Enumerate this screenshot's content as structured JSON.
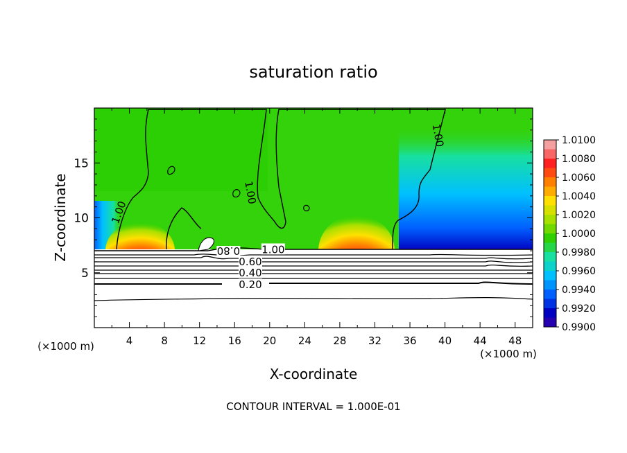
{
  "chart_data": {
    "type": "heatmap",
    "title": "saturation ratio",
    "xlabel": "X-coordinate",
    "ylabel": "Z-coordinate",
    "x_unit_left": "(×1000 m)",
    "x_unit_right": "(×1000 m)",
    "footer": "CONTOUR INTERVAL = 1.000E-01",
    "xlim": [
      0,
      50
    ],
    "ylim": [
      0,
      20
    ],
    "x_ticks": [
      4,
      8,
      12,
      16,
      20,
      24,
      28,
      32,
      36,
      40,
      44,
      48
    ],
    "x_tick_labels": [
      "4",
      "8",
      "12",
      "16",
      "20",
      "24",
      "28",
      "32",
      "36",
      "40",
      "44",
      "48"
    ],
    "y_ticks": [
      5,
      10,
      15
    ],
    "y_tick_labels": [
      "5",
      "10",
      "15"
    ],
    "colorbar": {
      "min": 0.99,
      "max": 1.01,
      "ticks": [
        1.01,
        1.008,
        1.006,
        1.004,
        1.002,
        1.0,
        0.998,
        0.996,
        0.994,
        0.992,
        0.99
      ],
      "tick_labels": [
        "1.0100",
        "1.0080",
        "1.0060",
        "1.0040",
        "1.0020",
        "1.0000",
        "0.9980",
        "0.9960",
        "0.9940",
        "0.9920",
        "0.9900"
      ],
      "colors": [
        "#f4a0a0",
        "#ff2020",
        "#ff8000",
        "#ffe000",
        "#a8e000",
        "#30d000",
        "#18e0a0",
        "#00c0ff",
        "#0060ff",
        "#0000c0",
        "#5000a0"
      ]
    },
    "contour_labels": [
      {
        "text": "1.00",
        "x": 2.8,
        "z": 10.5,
        "rotate": -70
      },
      {
        "text": "1.00",
        "x": 17.8,
        "z": 12.3,
        "rotate": 80
      },
      {
        "text": "1.00",
        "x": 39.2,
        "z": 17.5,
        "rotate": 80
      },
      {
        "text": "1.00",
        "x": 20.4,
        "z": 7.1,
        "rotate": 0
      },
      {
        "text": "0.80",
        "x": 15.3,
        "z": 7.0,
        "rotate": 180
      },
      {
        "text": "0.60",
        "x": 17.8,
        "z": 6.0,
        "rotate": 0
      },
      {
        "text": "0.40",
        "x": 17.8,
        "z": 5.0,
        "rotate": 0
      },
      {
        "text": "0.20",
        "x": 17.8,
        "z": 3.9,
        "rotate": 0
      }
    ],
    "contour_levels_below_cloud": [
      0.2,
      0.4,
      0.6,
      0.8,
      1.0
    ],
    "supersaturated_maxima": [
      {
        "x": 5.2,
        "z": 7.5,
        "value": 1.01
      },
      {
        "x": 29.8,
        "z": 7.6,
        "value": 1.01
      }
    ]
  }
}
